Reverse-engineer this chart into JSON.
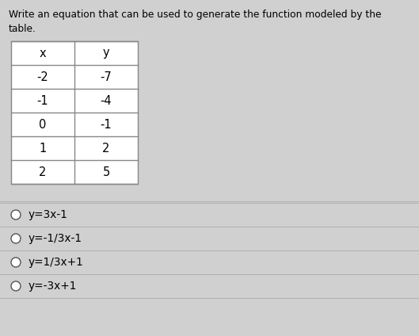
{
  "title_line1": "Write an equation that can be used to generate the function modeled by the",
  "title_line2": "table.",
  "table_headers": [
    "x",
    "y"
  ],
  "table_data": [
    [
      "-2",
      "-7"
    ],
    [
      "-1",
      "-4"
    ],
    [
      "0",
      "-1"
    ],
    [
      "1",
      "2"
    ],
    [
      "2",
      "5"
    ]
  ],
  "options": [
    "y=3x-1",
    "y=-1/3x-1",
    "y=1/3x+1",
    "y=-3x+1"
  ],
  "bg_color": "#d0d0d0",
  "table_bg": "#ffffff",
  "text_color": "#000000",
  "font_size_title": 8.8,
  "font_size_table": 10.5,
  "font_size_options": 9.8,
  "fig_width": 5.29,
  "fig_height": 4.24,
  "dpi": 100
}
